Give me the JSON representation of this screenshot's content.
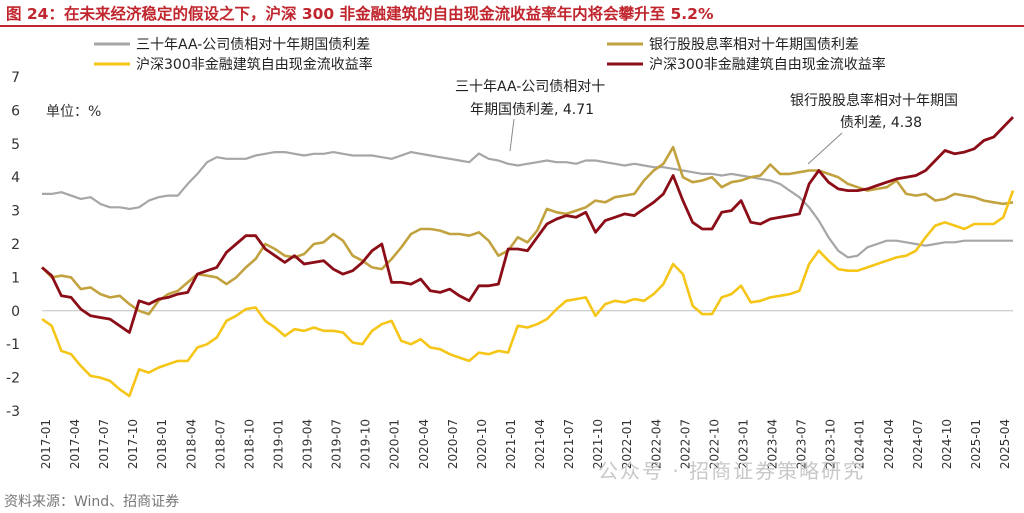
{
  "title": "图 24：在未来经济稳定的假设之下，沪深 300 非金融建筑的自由现金流收益率年内将会攀升至 5.2%",
  "source": "资料来源：Wind、招商证券",
  "watermark": "公众号 · 招商证券策略研究",
  "colors": {
    "title": "#c0262d",
    "gray": "#a6a6a6",
    "gold": "#c2a23f",
    "yellow": "#f5c518",
    "darkred": "#8b0d17"
  },
  "chart_data": {
    "type": "line",
    "unit_label": "单位：%",
    "ylim": [
      -3,
      7
    ],
    "yticks": [
      -3,
      -2,
      -1,
      0,
      1,
      2,
      3,
      4,
      5,
      6,
      7
    ],
    "x_tick_labels": [
      "2017-01",
      "2017-04",
      "2017-07",
      "2017-10",
      "2018-01",
      "2018-04",
      "2018-07",
      "2018-10",
      "2019-01",
      "2019-04",
      "2019-07",
      "2019-10",
      "2020-01",
      "2020-04",
      "2020-07",
      "2020-10",
      "2021-01",
      "2021-04",
      "2021-07",
      "2021-10",
      "2022-01",
      "2022-04",
      "2022-07",
      "2022-10",
      "2023-01",
      "2023-04",
      "2023-07",
      "2023-10",
      "2024-01",
      "2024-04",
      "2024-07",
      "2024-10",
      "2025-01",
      "2025-04"
    ],
    "series": [
      {
        "name": "三十年AA-公司债相对十年期国债利差",
        "color": "#a6a6a6",
        "x": [
          0,
          1,
          2,
          3,
          4,
          5,
          6,
          7,
          8,
          9,
          10,
          11,
          12,
          13,
          14,
          15,
          16,
          17,
          18,
          19,
          20,
          21,
          22,
          23,
          24,
          25,
          26,
          27,
          28,
          29,
          30,
          31,
          32,
          33,
          34,
          35,
          36,
          37,
          38,
          39,
          40,
          41,
          42,
          43,
          44,
          45,
          46,
          47,
          48,
          49,
          50,
          51,
          52,
          53,
          54,
          55,
          56,
          57,
          58,
          59,
          60,
          61,
          62,
          63,
          64,
          65,
          66,
          67,
          68,
          69,
          70,
          71,
          72,
          73,
          74,
          75,
          76,
          77,
          78,
          79,
          80,
          81,
          82,
          83,
          84,
          85,
          86,
          87,
          88,
          89,
          90,
          91,
          92,
          93,
          94,
          95,
          96,
          97,
          98,
          99,
          100
        ],
        "y": [
          3.5,
          3.5,
          3.55,
          3.45,
          3.35,
          3.4,
          3.2,
          3.1,
          3.1,
          3.05,
          3.1,
          3.3,
          3.4,
          3.45,
          3.45,
          3.8,
          4.1,
          4.45,
          4.6,
          4.55,
          4.55,
          4.55,
          4.65,
          4.7,
          4.75,
          4.75,
          4.7,
          4.65,
          4.7,
          4.7,
          4.75,
          4.7,
          4.65,
          4.65,
          4.65,
          4.6,
          4.55,
          4.65,
          4.75,
          4.7,
          4.65,
          4.6,
          4.55,
          4.5,
          4.45,
          4.71,
          4.55,
          4.5,
          4.4,
          4.35,
          4.4,
          4.45,
          4.5,
          4.45,
          4.45,
          4.4,
          4.5,
          4.5,
          4.45,
          4.4,
          4.35,
          4.4,
          4.35,
          4.3,
          4.3,
          4.25,
          4.2,
          4.15,
          4.1,
          4.1,
          4.05,
          4.1,
          4.05,
          4.0,
          3.95,
          3.9,
          3.8,
          3.6,
          3.4,
          3.1,
          2.7,
          2.2,
          1.8,
          1.6,
          1.65,
          1.9,
          2.0,
          2.1,
          2.1,
          2.05,
          2.0,
          1.95,
          2.0,
          2.05,
          2.05,
          2.1,
          2.1,
          2.1,
          2.1,
          2.1,
          2.1
        ]
      },
      {
        "name": "银行股股息率相对十年期国债利差",
        "color": "#c2a23f",
        "x": [
          0,
          1,
          2,
          3,
          4,
          5,
          6,
          7,
          8,
          9,
          10,
          11,
          12,
          13,
          14,
          15,
          16,
          17,
          18,
          19,
          20,
          21,
          22,
          23,
          24,
          25,
          26,
          27,
          28,
          29,
          30,
          31,
          32,
          33,
          34,
          35,
          36,
          37,
          38,
          39,
          40,
          41,
          42,
          43,
          44,
          45,
          46,
          47,
          48,
          49,
          50,
          51,
          52,
          53,
          54,
          55,
          56,
          57,
          58,
          59,
          60,
          61,
          62,
          63,
          64,
          65,
          66,
          67,
          68,
          69,
          70,
          71,
          72,
          73,
          74,
          75,
          76,
          77,
          78,
          79,
          80,
          81,
          82,
          83,
          84,
          85,
          86,
          87,
          88,
          89,
          90,
          91,
          92,
          93,
          94,
          95,
          96,
          97,
          98,
          99,
          100
        ],
        "y": [
          1.3,
          1.0,
          1.05,
          1.0,
          0.65,
          0.7,
          0.5,
          0.4,
          0.45,
          0.2,
          0.0,
          -0.1,
          0.3,
          0.5,
          0.6,
          0.85,
          1.1,
          1.05,
          1.0,
          0.8,
          1.0,
          1.3,
          1.55,
          2.0,
          1.85,
          1.65,
          1.6,
          1.7,
          2.0,
          2.05,
          2.3,
          2.1,
          1.65,
          1.5,
          1.3,
          1.25,
          1.55,
          1.9,
          2.3,
          2.45,
          2.45,
          2.4,
          2.3,
          2.3,
          2.25,
          2.35,
          2.1,
          1.65,
          1.8,
          2.2,
          2.05,
          2.4,
          3.05,
          2.95,
          2.9,
          3.0,
          3.1,
          3.3,
          3.25,
          3.4,
          3.45,
          3.5,
          3.9,
          4.2,
          4.4,
          4.9,
          4.0,
          3.85,
          3.9,
          4.0,
          3.7,
          3.85,
          3.9,
          4.0,
          4.05,
          4.38,
          4.1,
          4.1,
          4.15,
          4.2,
          4.2,
          4.1,
          4.0,
          3.8,
          3.7,
          3.6,
          3.65,
          3.7,
          3.9,
          3.5,
          3.45,
          3.5,
          3.3,
          3.35,
          3.5,
          3.45,
          3.4,
          3.3,
          3.25,
          3.2,
          3.25
        ]
      },
      {
        "name": "沪深300非金融建筑自由现金流收益率",
        "color": "#f5c518",
        "x": [
          0,
          1,
          2,
          3,
          4,
          5,
          6,
          7,
          8,
          9,
          10,
          11,
          12,
          13,
          14,
          15,
          16,
          17,
          18,
          19,
          20,
          21,
          22,
          23,
          24,
          25,
          26,
          27,
          28,
          29,
          30,
          31,
          32,
          33,
          34,
          35,
          36,
          37,
          38,
          39,
          40,
          41,
          42,
          43,
          44,
          45,
          46,
          47,
          48,
          49,
          50,
          51,
          52,
          53,
          54,
          55,
          56,
          57,
          58,
          59,
          60,
          61,
          62,
          63,
          64,
          65,
          66,
          67,
          68,
          69,
          70,
          71,
          72,
          73,
          74,
          75,
          76,
          77,
          78,
          79,
          80,
          81,
          82,
          83,
          84,
          85,
          86,
          87,
          88,
          89,
          90,
          91,
          92,
          93,
          94,
          95,
          96,
          97,
          98,
          99,
          100
        ],
        "y": [
          -0.25,
          -0.45,
          -1.2,
          -1.3,
          -1.65,
          -1.95,
          -2.0,
          -2.1,
          -2.35,
          -2.55,
          -1.75,
          -1.85,
          -1.7,
          -1.6,
          -1.5,
          -1.5,
          -1.1,
          -1.0,
          -0.8,
          -0.3,
          -0.15,
          0.05,
          0.1,
          -0.3,
          -0.5,
          -0.75,
          -0.55,
          -0.6,
          -0.5,
          -0.6,
          -0.6,
          -0.65,
          -0.95,
          -1.0,
          -0.6,
          -0.4,
          -0.3,
          -0.9,
          -1.0,
          -0.85,
          -1.1,
          -1.15,
          -1.3,
          -1.4,
          -1.5,
          -1.25,
          -1.3,
          -1.2,
          -1.25,
          -0.45,
          -0.5,
          -0.4,
          -0.25,
          0.05,
          0.3,
          0.35,
          0.4,
          -0.15,
          0.2,
          0.3,
          0.25,
          0.35,
          0.3,
          0.5,
          0.8,
          1.4,
          1.1,
          0.15,
          -0.1,
          -0.1,
          0.4,
          0.5,
          0.75,
          0.25,
          0.3,
          0.4,
          0.45,
          0.5,
          0.6,
          1.4,
          1.8,
          1.5,
          1.25,
          1.2,
          1.2,
          1.3,
          1.4,
          1.5,
          1.6,
          1.65,
          1.8,
          2.2,
          2.55,
          2.65,
          2.55,
          2.45,
          2.6,
          2.6,
          2.6,
          2.8,
          3.6
        ]
      },
      {
        "name": "沪深300非金融建筑自由现金流收益率",
        "color": "#8b0d17",
        "x": [
          0,
          1,
          2,
          3,
          4,
          5,
          6,
          7,
          8,
          9,
          10,
          11,
          12,
          13,
          14,
          15,
          16,
          17,
          18,
          19,
          20,
          21,
          22,
          23,
          24,
          25,
          26,
          27,
          28,
          29,
          30,
          31,
          32,
          33,
          34,
          35,
          36,
          37,
          38,
          39,
          40,
          41,
          42,
          43,
          44,
          45,
          46,
          47,
          48,
          49,
          50,
          51,
          52,
          53,
          54,
          55,
          56,
          57,
          58,
          59,
          60,
          61,
          62,
          63,
          64,
          65,
          66,
          67,
          68,
          69,
          70,
          71,
          72,
          73,
          74,
          75,
          76,
          77,
          78,
          79,
          80,
          81,
          82,
          83,
          84,
          85,
          86,
          87,
          88,
          89,
          90,
          91,
          92,
          93,
          94,
          95,
          96,
          97,
          98,
          99,
          100
        ],
        "y": [
          1.3,
          1.05,
          0.45,
          0.4,
          0.05,
          -0.15,
          -0.2,
          -0.25,
          -0.45,
          -0.65,
          0.3,
          0.2,
          0.35,
          0.4,
          0.5,
          0.55,
          1.1,
          1.2,
          1.3,
          1.75,
          2.0,
          2.25,
          2.25,
          1.85,
          1.65,
          1.45,
          1.65,
          1.4,
          1.45,
          1.5,
          1.25,
          1.1,
          1.2,
          1.45,
          1.8,
          2.0,
          0.85,
          0.85,
          0.8,
          0.95,
          0.6,
          0.55,
          0.65,
          0.45,
          0.3,
          0.75,
          0.75,
          0.8,
          1.85,
          1.85,
          1.8,
          2.2,
          2.6,
          2.75,
          2.85,
          2.8,
          2.95,
          2.35,
          2.7,
          2.8,
          2.9,
          2.85,
          3.05,
          3.25,
          3.5,
          4.05,
          3.3,
          2.65,
          2.45,
          2.45,
          2.95,
          3.0,
          3.3,
          2.65,
          2.6,
          2.75,
          2.8,
          2.85,
          2.9,
          3.8,
          4.2,
          3.85,
          3.65,
          3.6,
          3.6,
          3.65,
          3.75,
          3.85,
          3.95,
          4.0,
          4.05,
          4.2,
          4.5,
          4.8,
          4.7,
          4.75,
          4.85,
          5.1,
          5.2,
          5.5,
          5.8
        ]
      }
    ],
    "annotations": [
      {
        "line1": "三十年AA-公司债相对十",
        "line2": "年期国债利差, 4.71"
      },
      {
        "line1": "银行股股息率相对十年期国",
        "line2": "债利差, 4.38"
      }
    ]
  }
}
